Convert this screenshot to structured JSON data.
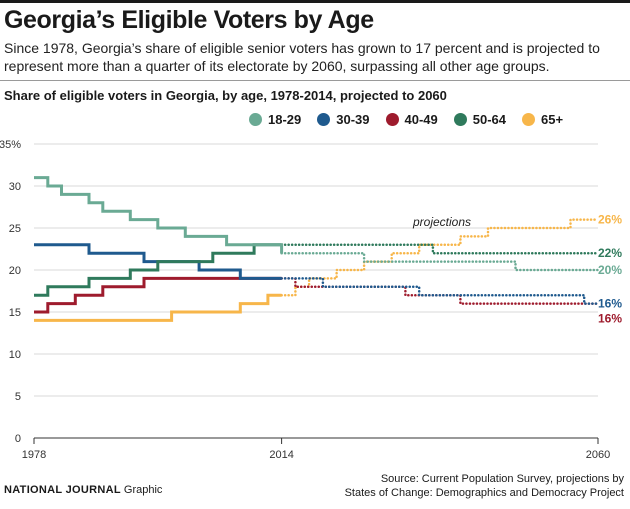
{
  "header": {
    "title": "Georgia’s Eligible Voters by Age",
    "subtitle": "Since 1978, Georgia’s share of eligible senior voters has grown to 17 percent and is projected to represent more than a quarter of its electorate by 2060, surpassing all other age groups."
  },
  "chart_data": {
    "type": "line",
    "title": "Share of eligible voters in Georgia, by age, 1978-2014, projected to 2060",
    "xlabel": "",
    "ylabel": "",
    "x_tick_labels": [
      "1978",
      "2014",
      "2060"
    ],
    "y_ticks": [
      "0",
      "5",
      "10",
      "15",
      "20",
      "25",
      "30",
      "35%"
    ],
    "ylim": [
      0,
      35
    ],
    "grid": true,
    "legend_position": "top",
    "annotation": "projections",
    "actual_years": [
      1978,
      1980,
      1982,
      1984,
      1986,
      1988,
      1990,
      1992,
      1994,
      1996,
      1998,
      2000,
      2002,
      2004,
      2006,
      2008,
      2010,
      2012,
      2014
    ],
    "projection_years": [
      2014,
      2016,
      2018,
      2020,
      2022,
      2024,
      2026,
      2028,
      2030,
      2032,
      2034,
      2036,
      2038,
      2040,
      2042,
      2044,
      2046,
      2048,
      2050,
      2052,
      2054,
      2056,
      2058,
      2060
    ],
    "series": [
      {
        "name": "18-29",
        "color": "#6aaa94",
        "actual": [
          31,
          30,
          29,
          29,
          28,
          27,
          27,
          26,
          26,
          25,
          25,
          24,
          24,
          24,
          23,
          23,
          23,
          23,
          22
        ],
        "projection": [
          22,
          22,
          22,
          22,
          22,
          22,
          21,
          21,
          21,
          21,
          21,
          21,
          21,
          21,
          21,
          21,
          21,
          20,
          20,
          20,
          20,
          20,
          20,
          20
        ],
        "end_label": "20%"
      },
      {
        "name": "30-39",
        "color": "#1f5a8e",
        "actual": [
          23,
          23,
          23,
          23,
          22,
          22,
          22,
          22,
          21,
          21,
          21,
          21,
          20,
          20,
          20,
          19,
          19,
          19,
          19
        ],
        "projection": [
          19,
          19,
          19,
          18,
          18,
          18,
          18,
          18,
          18,
          18,
          17,
          17,
          17,
          17,
          17,
          17,
          17,
          17,
          17,
          17,
          17,
          17,
          16,
          16
        ],
        "end_label": "16%"
      },
      {
        "name": "40-49",
        "color": "#9e1b2d",
        "actual": [
          15,
          16,
          16,
          17,
          17,
          18,
          18,
          18,
          19,
          19,
          19,
          19,
          19,
          19,
          19,
          19,
          19,
          19,
          19
        ],
        "projection": [
          19,
          18,
          18,
          18,
          18,
          18,
          18,
          18,
          18,
          17,
          17,
          17,
          17,
          16,
          16,
          16,
          16,
          16,
          16,
          16,
          16,
          16,
          16,
          16
        ],
        "end_label": "16%"
      },
      {
        "name": "50-64",
        "color": "#2f7a5c",
        "actual": [
          17,
          18,
          18,
          18,
          19,
          19,
          19,
          20,
          20,
          21,
          21,
          21,
          21,
          22,
          22,
          22,
          23,
          23,
          23
        ],
        "projection": [
          23,
          23,
          23,
          23,
          23,
          23,
          23,
          23,
          23,
          23,
          23,
          22,
          22,
          22,
          22,
          22,
          22,
          22,
          22,
          22,
          22,
          22,
          22,
          22
        ],
        "end_label": "22%"
      },
      {
        "name": "65+",
        "color": "#f7b64a",
        "actual": [
          14,
          14,
          14,
          14,
          14,
          14,
          14,
          14,
          14,
          14,
          15,
          15,
          15,
          15,
          15,
          16,
          16,
          17,
          17
        ],
        "projection": [
          17,
          18,
          19,
          19,
          20,
          20,
          21,
          21,
          22,
          22,
          23,
          23,
          23,
          24,
          24,
          25,
          25,
          25,
          25,
          25,
          25,
          26,
          26,
          26
        ],
        "end_label": "26%"
      }
    ]
  },
  "footer": {
    "brand": "NATIONAL JOURNAL",
    "brand_suffix": " Graphic",
    "source_line1": "Source: Current Population Survey, projections by",
    "source_line2": "States of Change: Demographics and Democracy Project"
  }
}
